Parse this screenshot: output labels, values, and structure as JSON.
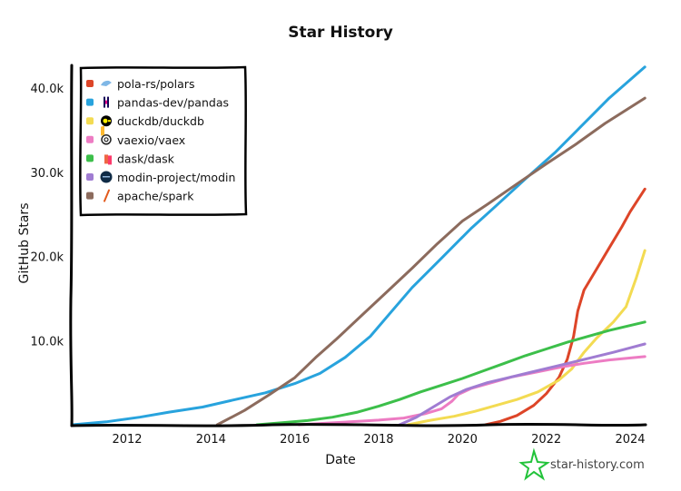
{
  "chart_data": {
    "type": "line",
    "title": "Star History",
    "xlabel": "Date",
    "ylabel": "GitHub Stars",
    "xlim": [
      2010.7,
      2024.35
    ],
    "ylim": [
      0,
      42500
    ],
    "x_ticks": [
      2012,
      2014,
      2016,
      2018,
      2020,
      2022,
      2024
    ],
    "x_tick_labels": [
      "2012",
      "2014",
      "2016",
      "2018",
      "2020",
      "2022",
      "2024"
    ],
    "y_ticks": [
      10000,
      20000,
      30000,
      40000
    ],
    "y_tick_labels": [
      "10.0k",
      "20.0k",
      "30.0k",
      "40.0k"
    ],
    "grid": false,
    "legend_position": "top-left",
    "series": [
      {
        "name": "pola-rs/polars",
        "color": "#dd4528",
        "icon": "polar-bear-icon",
        "points": [
          [
            2020.55,
            0
          ],
          [
            2020.9,
            400
          ],
          [
            2021.3,
            1100
          ],
          [
            2021.7,
            2300
          ],
          [
            2022.0,
            3700
          ],
          [
            2022.3,
            5600
          ],
          [
            2022.5,
            7800
          ],
          [
            2022.65,
            10500
          ],
          [
            2022.75,
            13500
          ],
          [
            2022.9,
            16000
          ],
          [
            2023.2,
            18500
          ],
          [
            2023.5,
            21000
          ],
          [
            2023.8,
            23500
          ],
          [
            2024.0,
            25300
          ],
          [
            2024.35,
            28000
          ]
        ]
      },
      {
        "name": "pandas-dev/pandas",
        "color": "#28a3dd",
        "icon": "pandas-icon",
        "points": [
          [
            2010.7,
            0
          ],
          [
            2011.5,
            350
          ],
          [
            2012.3,
            900
          ],
          [
            2013.0,
            1500
          ],
          [
            2013.8,
            2100
          ],
          [
            2014.5,
            2900
          ],
          [
            2015.3,
            3800
          ],
          [
            2016.0,
            4900
          ],
          [
            2016.6,
            6100
          ],
          [
            2017.2,
            8000
          ],
          [
            2017.8,
            10500
          ],
          [
            2018.3,
            13400
          ],
          [
            2018.8,
            16300
          ],
          [
            2019.5,
            19800
          ],
          [
            2020.2,
            23300
          ],
          [
            2020.8,
            26000
          ],
          [
            2021.5,
            29200
          ],
          [
            2022.2,
            32300
          ],
          [
            2022.8,
            35300
          ],
          [
            2023.5,
            38800
          ],
          [
            2024.35,
            42500
          ]
        ]
      },
      {
        "name": "duckdb/duckdb",
        "color": "#f3db52",
        "icon": "duckdb-icon",
        "points": [
          [
            2018.7,
            0
          ],
          [
            2019.2,
            500
          ],
          [
            2019.8,
            1000
          ],
          [
            2020.3,
            1600
          ],
          [
            2020.8,
            2300
          ],
          [
            2021.3,
            3000
          ],
          [
            2021.8,
            3900
          ],
          [
            2022.3,
            5300
          ],
          [
            2022.6,
            6600
          ],
          [
            2022.9,
            8600
          ],
          [
            2023.2,
            10300
          ],
          [
            2023.6,
            12200
          ],
          [
            2023.9,
            14000
          ],
          [
            2024.15,
            17500
          ],
          [
            2024.35,
            20700
          ]
        ]
      },
      {
        "name": "vaexio/vaex",
        "color": "#ed7cc3",
        "icon": "vaex-icon",
        "points": [
          [
            2016.1,
            0
          ],
          [
            2016.8,
            200
          ],
          [
            2017.5,
            400
          ],
          [
            2018.0,
            550
          ],
          [
            2018.6,
            800
          ],
          [
            2019.1,
            1300
          ],
          [
            2019.5,
            1900
          ],
          [
            2019.75,
            2800
          ],
          [
            2019.9,
            3600
          ],
          [
            2020.2,
            4300
          ],
          [
            2020.7,
            5000
          ],
          [
            2021.2,
            5700
          ],
          [
            2021.8,
            6300
          ],
          [
            2022.4,
            6900
          ],
          [
            2022.9,
            7300
          ],
          [
            2023.5,
            7700
          ],
          [
            2024.35,
            8100
          ]
        ]
      },
      {
        "name": "dask/dask",
        "color": "#3cbf4a",
        "icon": "dask-icon",
        "points": [
          [
            2015.1,
            0
          ],
          [
            2015.7,
            250
          ],
          [
            2016.3,
            500
          ],
          [
            2016.9,
            900
          ],
          [
            2017.5,
            1500
          ],
          [
            2018.0,
            2200
          ],
          [
            2018.5,
            3000
          ],
          [
            2019.0,
            3900
          ],
          [
            2019.5,
            4700
          ],
          [
            2020.0,
            5500
          ],
          [
            2020.5,
            6400
          ],
          [
            2021.0,
            7300
          ],
          [
            2021.5,
            8200
          ],
          [
            2022.0,
            9000
          ],
          [
            2022.5,
            9800
          ],
          [
            2023.0,
            10500
          ],
          [
            2023.5,
            11200
          ],
          [
            2024.35,
            12200
          ]
        ]
      },
      {
        "name": "modin-project/modin",
        "color": "#a07cd2",
        "icon": "modin-icon",
        "points": [
          [
            2018.5,
            0
          ],
          [
            2018.9,
            900
          ],
          [
            2019.3,
            2100
          ],
          [
            2019.7,
            3300
          ],
          [
            2020.1,
            4200
          ],
          [
            2020.6,
            5000
          ],
          [
            2021.1,
            5600
          ],
          [
            2021.6,
            6200
          ],
          [
            2022.1,
            6800
          ],
          [
            2022.6,
            7400
          ],
          [
            2023.1,
            8000
          ],
          [
            2023.6,
            8600
          ],
          [
            2024.35,
            9600
          ]
        ]
      },
      {
        "name": "apache/spark",
        "color": "#8c6b5d",
        "icon": "spark-icon",
        "points": [
          [
            2014.15,
            0
          ],
          [
            2014.8,
            1700
          ],
          [
            2015.4,
            3600
          ],
          [
            2016.0,
            5600
          ],
          [
            2016.5,
            8000
          ],
          [
            2017.0,
            10200
          ],
          [
            2017.6,
            13000
          ],
          [
            2018.2,
            15800
          ],
          [
            2018.8,
            18600
          ],
          [
            2019.4,
            21500
          ],
          [
            2020.0,
            24200
          ],
          [
            2020.6,
            26200
          ],
          [
            2021.3,
            28600
          ],
          [
            2022.0,
            31000
          ],
          [
            2022.7,
            33300
          ],
          [
            2023.4,
            35800
          ],
          [
            2024.35,
            38800
          ]
        ]
      }
    ]
  },
  "watermark": {
    "text": "star-history.com",
    "icon": "star-icon",
    "color": "#22c33a"
  }
}
